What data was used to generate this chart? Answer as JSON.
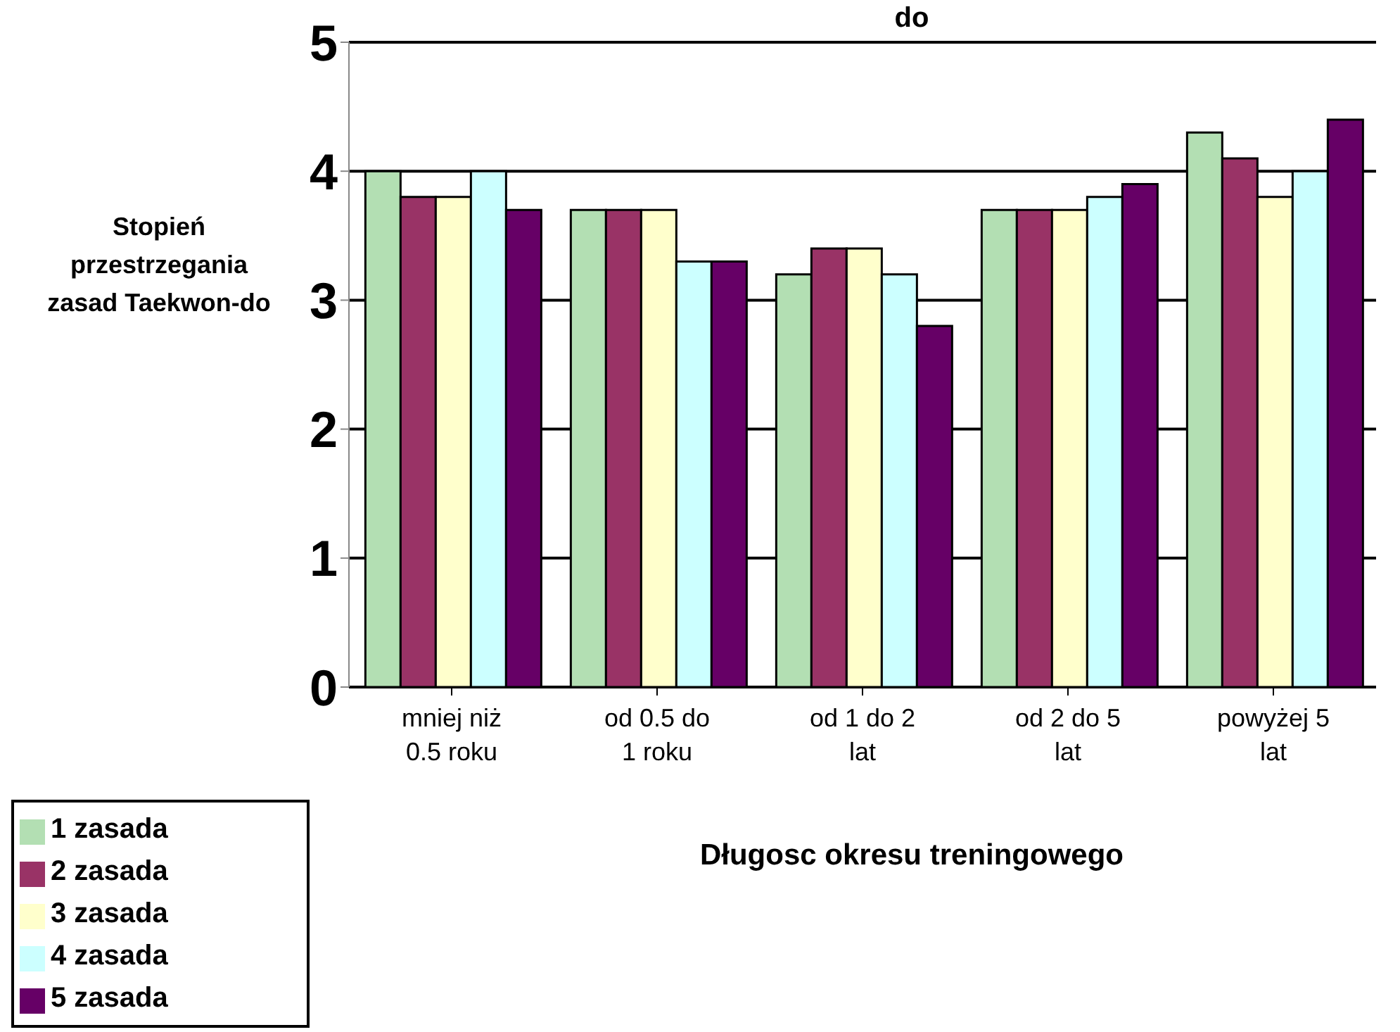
{
  "chart_data": {
    "type": "bar",
    "title": "do",
    "xlabel": "Długosc okresu treningowego",
    "ylabel": "Stopień przestrzegania zasad Taekwon-do",
    "categories": [
      "mniej niż 0.5 roku",
      "od 0.5 do 1 roku",
      "od 1 do 2 lat",
      "od 2 do 5 lat",
      "powyżej 5 lat"
    ],
    "series": [
      {
        "name": "1 zasada",
        "color": "#b3dfb3",
        "values": [
          4.0,
          3.7,
          3.2,
          3.7,
          4.3
        ]
      },
      {
        "name": "2 zasada",
        "color": "#993366",
        "values": [
          3.8,
          3.7,
          3.4,
          3.7,
          4.1
        ]
      },
      {
        "name": "3 zasada",
        "color": "#ffffcc",
        "values": [
          3.8,
          3.7,
          3.4,
          3.7,
          3.8
        ]
      },
      {
        "name": "4 zasada",
        "color": "#ccffff",
        "values": [
          4.0,
          3.3,
          3.2,
          3.8,
          4.0
        ]
      },
      {
        "name": "5 zasada",
        "color": "#660066",
        "values": [
          3.7,
          3.3,
          2.8,
          3.9,
          4.4
        ]
      }
    ],
    "ylim": [
      0,
      5
    ],
    "yticks": [
      0,
      1,
      2,
      3,
      4,
      5
    ],
    "grid": "y",
    "legend": "bottom left"
  }
}
